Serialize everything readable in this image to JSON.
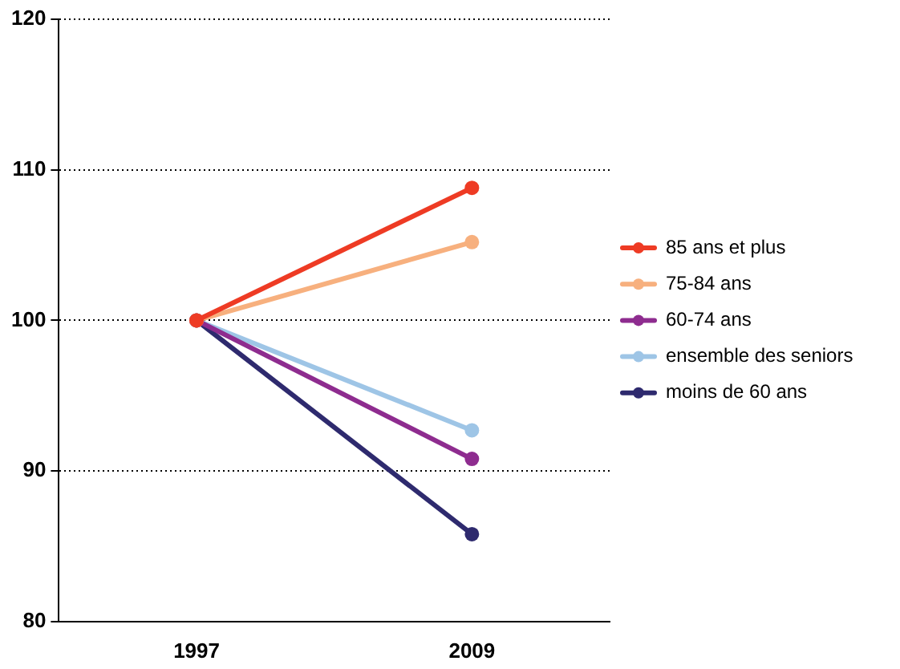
{
  "chart_data": {
    "type": "line",
    "categories": [
      "1997",
      "2009"
    ],
    "series": [
      {
        "name": "85 ans et plus",
        "color": "#ee3b24",
        "values": [
          100,
          108.8
        ]
      },
      {
        "name": "75-84 ans",
        "color": "#f7b07e",
        "values": [
          100,
          105.2
        ]
      },
      {
        "name": "60-74 ans",
        "color": "#8e2c8f",
        "values": [
          100,
          90.8
        ]
      },
      {
        "name": "ensemble des seniors",
        "color": "#9ec5e6",
        "values": [
          100,
          92.7
        ]
      },
      {
        "name": "moins de 60 ans",
        "color": "#2e2a6e",
        "values": [
          100,
          85.8
        ]
      }
    ],
    "ylim": [
      80,
      120
    ],
    "yticks": [
      80,
      90,
      100,
      110,
      120
    ],
    "grid": "y",
    "legend": "right",
    "marker": "circle",
    "line_style": "solid"
  }
}
